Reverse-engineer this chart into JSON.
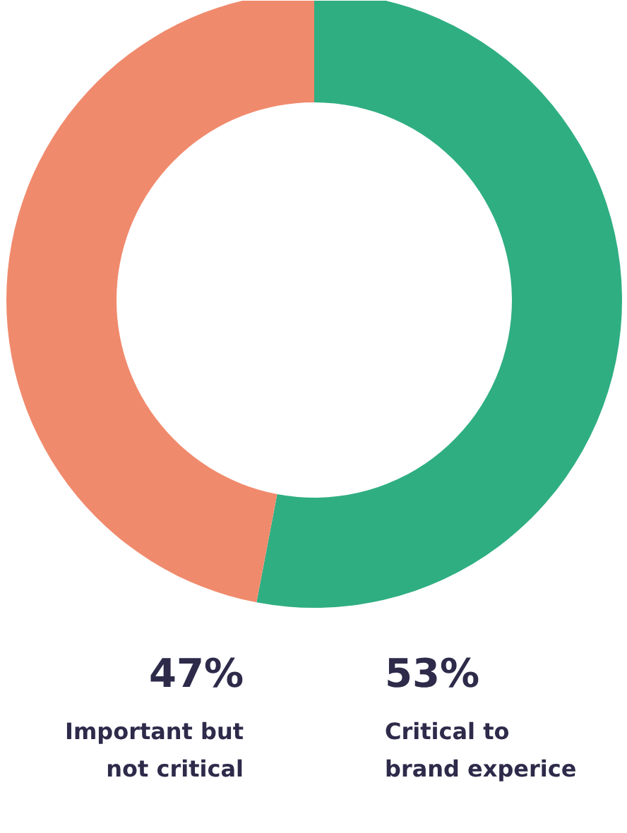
{
  "chart_data": {
    "type": "donut",
    "categories": [
      "Critical to brand experice",
      "Important but not critical"
    ],
    "values": [
      53,
      47
    ],
    "colors": [
      "#2fae82",
      "#f08a6c"
    ],
    "value_labels": [
      "53%",
      "47%"
    ]
  }
}
